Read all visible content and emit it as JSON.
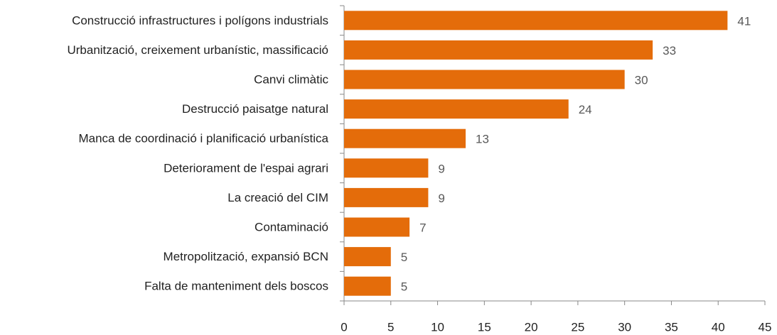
{
  "chart_data": {
    "type": "bar",
    "orientation": "horizontal",
    "categories": [
      "Construcció infrastructures i polígons industrials",
      "Urbanització, creixement urbanístic, massificació",
      "Canvi climàtic",
      "Destrucció paisatge natural",
      "Manca de coordinació i planificació urbanística",
      "Deteriorament de l'espai agrari",
      "La creació del CIM",
      "Contaminació",
      "Metropolització, expansió BCN",
      "Falta de manteniment dels boscos"
    ],
    "values": [
      41,
      33,
      30,
      24,
      13,
      9,
      9,
      7,
      5,
      5
    ],
    "color": "#e46c0a",
    "xlim": [
      0,
      45
    ],
    "xticks": [
      0,
      5,
      10,
      15,
      20,
      25,
      30,
      35,
      40,
      45
    ],
    "grid": false
  }
}
